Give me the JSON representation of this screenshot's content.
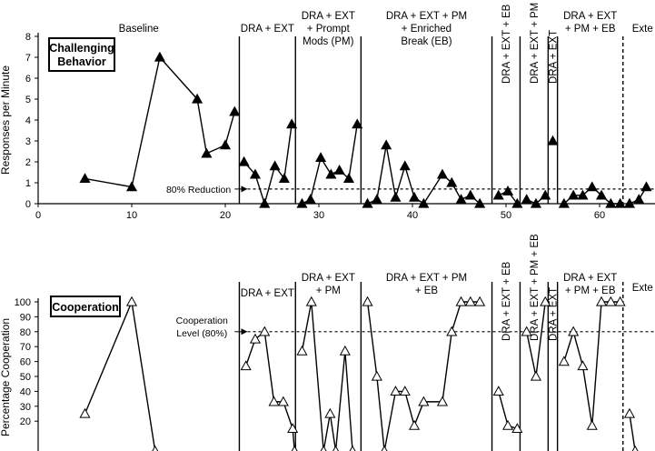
{
  "chart_data": [
    {
      "type": "line",
      "panel": "top",
      "legend_label": "Challenging Behavior",
      "ylabel": "Responses per Minute",
      "xlabel": "",
      "ylim": [
        0,
        8
      ],
      "yticks": [
        0,
        1,
        2,
        3,
        4,
        5,
        6,
        7,
        8
      ],
      "xlim": [
        0,
        65
      ],
      "xticks": [
        0,
        10,
        20,
        30,
        40,
        50,
        60
      ],
      "marker": "filled-triangle",
      "criterion": {
        "value": 0.7,
        "label": "80% Reduction"
      },
      "phases": [
        {
          "label": "Baseline",
          "start": 0,
          "end": 21.5
        },
        {
          "label": "DRA + EXT",
          "start": 21.5,
          "end": 27.5
        },
        {
          "label": "DRA + EXT + Prompt Mods (PM)",
          "start": 27.5,
          "end": 34.5
        },
        {
          "label": "DRA + EXT + PM + Enriched Break (EB)",
          "start": 34.5,
          "end": 48.5
        },
        {
          "label": "DRA + EXT + EB",
          "start": 48.5,
          "end": 51.5
        },
        {
          "label": "DRA + EXT + PM + EB",
          "start": 51.5,
          "end": 54.5
        },
        {
          "label": "DRA + EXT",
          "start": 54.5,
          "end": 55.5
        },
        {
          "label": "DRA + EXT + PM + EB",
          "start": 55.5,
          "end": 62.5
        },
        {
          "label": "Exte",
          "start": 62.5,
          "end": 65
        }
      ],
      "boundaries": [
        {
          "x": 21.5,
          "style": "solid"
        },
        {
          "x": 27.5,
          "style": "solid"
        },
        {
          "x": 34.5,
          "style": "solid"
        },
        {
          "x": 48.5,
          "style": "solid"
        },
        {
          "x": 51.5,
          "style": "solid"
        },
        {
          "x": 54.5,
          "style": "solid"
        },
        {
          "x": 55.5,
          "style": "solid"
        },
        {
          "x": 62.5,
          "style": "dashed"
        }
      ],
      "segments": [
        [
          [
            5,
            1.2
          ],
          [
            10,
            0.8
          ],
          [
            13,
            7.0
          ],
          [
            17,
            5.0
          ],
          [
            18,
            2.4
          ],
          [
            20,
            2.8
          ],
          [
            21,
            4.4
          ]
        ],
        [
          [
            22,
            2.0
          ],
          [
            23.2,
            1.4
          ],
          [
            24.2,
            0
          ],
          [
            25.3,
            1.8
          ],
          [
            26.3,
            1.2
          ],
          [
            27.1,
            3.8
          ]
        ],
        [
          [
            28.2,
            0
          ],
          [
            29.1,
            0.2
          ],
          [
            30.2,
            2.2
          ],
          [
            31.3,
            1.4
          ],
          [
            32.2,
            1.6
          ],
          [
            33.2,
            1.2
          ],
          [
            34.1,
            3.8
          ]
        ],
        [
          [
            35.2,
            0
          ],
          [
            36.2,
            0.2
          ],
          [
            37.2,
            2.8
          ],
          [
            38.2,
            0.3
          ],
          [
            39.2,
            1.8
          ],
          [
            40.2,
            0.3
          ],
          [
            41.2,
            0
          ],
          [
            43.2,
            1.4
          ],
          [
            44.2,
            1.0
          ],
          [
            45.2,
            0.2
          ],
          [
            46.2,
            0.4
          ],
          [
            47.2,
            0
          ]
        ],
        [
          [
            49.2,
            0.4
          ],
          [
            50.2,
            0.6
          ],
          [
            51.2,
            0
          ]
        ],
        [
          [
            52.2,
            0.2
          ],
          [
            53.2,
            0
          ],
          [
            54.2,
            0.4
          ]
        ],
        [
          [
            55,
            3.0
          ]
        ],
        [
          [
            56.2,
            0
          ],
          [
            57.2,
            0.4
          ],
          [
            58.2,
            0.4
          ],
          [
            59.2,
            0.8
          ],
          [
            60.2,
            0.4
          ],
          [
            61.2,
            0
          ],
          [
            62.2,
            0
          ]
        ],
        [
          [
            63.2,
            0
          ],
          [
            64.2,
            0.2
          ],
          [
            65,
            0.8
          ]
        ]
      ]
    },
    {
      "type": "line",
      "panel": "bottom",
      "legend_label": "Cooperation",
      "ylabel": "Percentage Cooperation",
      "xlabel": "",
      "ylim": [
        0,
        100
      ],
      "yticks": [
        20,
        30,
        40,
        50,
        60,
        70,
        80,
        90,
        100
      ],
      "xlim": [
        0,
        65
      ],
      "marker": "open-triangle",
      "criterion": {
        "value": 80,
        "label": "Cooperation Level (80%)"
      },
      "phases": [
        {
          "label": "DRA + EXT",
          "start": 21.5,
          "end": 27.5
        },
        {
          "label": "DRA + EXT + PM",
          "start": 27.5,
          "end": 34.5
        },
        {
          "label": "DRA + EXT + PM + EB",
          "start": 34.5,
          "end": 48.5
        },
        {
          "label": "DRA + EXT + EB",
          "start": 48.5,
          "end": 51.5
        },
        {
          "label": "DRA + EXT + PM + EB",
          "start": 51.5,
          "end": 54.5
        },
        {
          "label": "DRA + EXT",
          "start": 54.5,
          "end": 55.5
        },
        {
          "label": "DRA + EXT + PM + EB",
          "start": 55.5,
          "end": 62.5
        },
        {
          "label": "Exte",
          "start": 62.5,
          "end": 65
        }
      ],
      "boundaries": [
        {
          "x": 21.5,
          "style": "solid"
        },
        {
          "x": 27.5,
          "style": "solid"
        },
        {
          "x": 34.5,
          "style": "solid"
        },
        {
          "x": 48.5,
          "style": "solid"
        },
        {
          "x": 51.5,
          "style": "solid"
        },
        {
          "x": 54.5,
          "style": "solid"
        },
        {
          "x": 55.5,
          "style": "solid"
        },
        {
          "x": 62.5,
          "style": "dashed"
        }
      ],
      "segments": [
        [
          [
            5,
            25
          ],
          [
            10,
            100
          ],
          [
            12.5,
            0
          ]
        ],
        [
          [
            22.2,
            57
          ],
          [
            23.2,
            75
          ],
          [
            24.2,
            80
          ],
          [
            25.2,
            33
          ],
          [
            26.2,
            33
          ],
          [
            27.2,
            15
          ],
          [
            27.4,
            0
          ]
        ],
        [
          [
            28.2,
            67
          ],
          [
            29.2,
            100
          ],
          [
            30.5,
            0
          ],
          [
            31.2,
            25
          ],
          [
            31.8,
            0
          ],
          [
            32.8,
            67
          ],
          [
            33.6,
            0
          ]
        ],
        [
          [
            35.2,
            100
          ],
          [
            36.2,
            50
          ],
          [
            37,
            0
          ],
          [
            38.2,
            40
          ],
          [
            39.2,
            40
          ],
          [
            40.2,
            17
          ],
          [
            41.2,
            33
          ],
          [
            43.2,
            33
          ],
          [
            44.2,
            80
          ],
          [
            45.2,
            100
          ],
          [
            46.2,
            100
          ],
          [
            47.2,
            100
          ]
        ],
        [
          [
            49.2,
            40
          ],
          [
            50.2,
            17
          ],
          [
            51.2,
            15
          ]
        ],
        [
          [
            52.2,
            80
          ],
          [
            53.2,
            50
          ],
          [
            54.2,
            100
          ]
        ],
        [
          [
            56.2,
            60
          ],
          [
            57.2,
            80
          ],
          [
            58.2,
            57
          ],
          [
            59.2,
            17
          ],
          [
            60.2,
            100
          ],
          [
            61.2,
            100
          ],
          [
            62.2,
            100
          ]
        ],
        [
          [
            63.2,
            25
          ],
          [
            63.8,
            0
          ]
        ]
      ]
    }
  ]
}
